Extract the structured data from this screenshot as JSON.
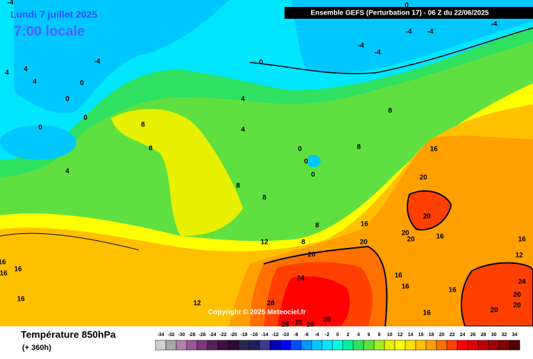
{
  "header": {
    "date": "Lundi 7 juillet 2025",
    "time": "7:00 locale",
    "run": "Ensemble GEFS  (Perturbation 17)  -  06 Z du 22/06/2025"
  },
  "copyright": "Copyright © 2025 Meteociel.fr",
  "footer": {
    "title": "Température 850hPa",
    "lead": "(+ 360h)"
  },
  "contour_labels": [
    -4,
    4,
    4,
    4,
    0,
    0,
    0,
    0,
    -4,
    4,
    8,
    8,
    4,
    4,
    0,
    0,
    -4,
    -4,
    -4,
    -4,
    -4,
    8,
    8,
    0,
    0,
    0,
    8,
    8,
    8,
    12,
    8,
    20,
    16,
    20,
    16,
    20,
    20,
    20,
    20,
    16,
    24,
    28,
    28,
    28,
    28,
    28,
    16,
    16,
    16,
    16,
    20,
    20,
    20,
    24,
    16,
    12,
    16,
    16,
    16,
    16,
    12
  ],
  "legend": {
    "values": [
      -34,
      -32,
      -30,
      -28,
      -26,
      -24,
      -22,
      -20,
      -18,
      -16,
      -14,
      -12,
      -10,
      -8,
      -6,
      -4,
      -2,
      0,
      2,
      4,
      6,
      8,
      10,
      12,
      14,
      16,
      18,
      20,
      22,
      24,
      26,
      28,
      30,
      32,
      34
    ],
    "colors": [
      "#d0d0d0",
      "#a8a8a8",
      "#b080b0",
      "#985898",
      "#783878",
      "#582058",
      "#401040",
      "#300838",
      "#282850",
      "#202060",
      "#3c3c8c",
      "#0000b4",
      "#0000ff",
      "#0050ff",
      "#0096ff",
      "#00c8ff",
      "#00e6ff",
      "#00ffe0",
      "#00f0a0",
      "#30e060",
      "#60e040",
      "#a0f020",
      "#e6f000",
      "#ffff00",
      "#ffe000",
      "#ffc000",
      "#ffa000",
      "#ff7000",
      "#ff4000",
      "#ff0000",
      "#e00000",
      "#c00000",
      "#a00000",
      "#800000",
      "#500000"
    ]
  }
}
